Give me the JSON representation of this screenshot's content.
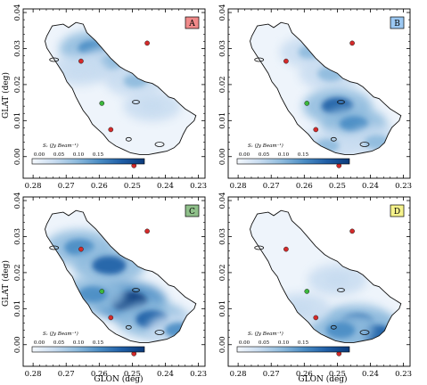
{
  "figure": {
    "x_axis_label": "GLON (deg)",
    "y_axis_label": "GLAT (deg)",
    "x_tick_labels": [
      "0.28",
      "0.27",
      "0.26",
      "0.25",
      "0.24",
      "0.23"
    ],
    "y_tick_labels": [
      "0.00",
      "0.01",
      "0.02",
      "0.03",
      "0.04"
    ],
    "colorbar": {
      "title": "S_ν  (Jy Beam⁻¹)",
      "title_display": "Sᵥ (Jy Beam⁻¹)",
      "tick_labels": [
        "0.00",
        "0.05",
        "0.10",
        "0.15"
      ],
      "colors": [
        "#f4f8fd",
        "#c8dcf0",
        "#8dbadd",
        "#4a8cc4",
        "#1f5ea6",
        "#0b3a7a"
      ]
    },
    "panels": [
      {
        "letter": "A",
        "badge_color": "#f08a8a"
      },
      {
        "letter": "B",
        "badge_color": "#9cc8f2"
      },
      {
        "letter": "C",
        "badge_color": "#8fc08a"
      },
      {
        "letter": "D",
        "badge_color": "#f6f38c"
      }
    ],
    "markers": {
      "red": "#d42a2a",
      "green": "#3cb83c"
    }
  },
  "chart_data": [
    {
      "type": "heatmap",
      "panel": "A",
      "xlabel": "",
      "ylabel": "GLAT (deg)",
      "xlim": [
        0.283,
        0.228
      ],
      "ylim": [
        -0.006,
        0.041
      ],
      "emission_regions": [
        {
          "glon": 0.262,
          "glat": 0.03,
          "level": 0.09
        },
        {
          "glon": 0.256,
          "glat": 0.026,
          "level": 0.07
        },
        {
          "glon": 0.249,
          "glat": 0.021,
          "level": 0.05
        },
        {
          "glon": 0.244,
          "glat": 0.014,
          "level": 0.03
        },
        {
          "glon": 0.266,
          "glat": 0.024,
          "level": 0.04
        }
      ]
    },
    {
      "type": "heatmap",
      "panel": "B",
      "xlabel": "",
      "ylabel": "",
      "xlim": [
        0.283,
        0.228
      ],
      "ylim": [
        -0.006,
        0.041
      ],
      "emission_regions": [
        {
          "glon": 0.258,
          "glat": 0.029,
          "level": 0.06
        },
        {
          "glon": 0.252,
          "glat": 0.023,
          "level": 0.07
        },
        {
          "glon": 0.25,
          "glat": 0.014,
          "level": 0.11
        },
        {
          "glon": 0.245,
          "glat": 0.009,
          "level": 0.09
        },
        {
          "glon": 0.238,
          "glat": 0.004,
          "level": 0.06
        },
        {
          "glon": 0.253,
          "glat": 0.003,
          "level": 0.05
        }
      ]
    },
    {
      "type": "heatmap",
      "panel": "C",
      "xlabel": "GLON (deg)",
      "ylabel": "GLAT (deg)",
      "xlim": [
        0.283,
        0.228
      ],
      "ylim": [
        -0.006,
        0.041
      ],
      "emission_regions": [
        {
          "glon": 0.266,
          "glat": 0.027,
          "level": 0.1
        },
        {
          "glon": 0.257,
          "glat": 0.022,
          "level": 0.13
        },
        {
          "glon": 0.251,
          "glat": 0.012,
          "level": 0.15
        },
        {
          "glon": 0.244,
          "glat": 0.007,
          "level": 0.12
        },
        {
          "glon": 0.236,
          "glat": 0.004,
          "level": 0.08
        },
        {
          "glon": 0.262,
          "glat": 0.014,
          "level": 0.09
        }
      ]
    },
    {
      "type": "heatmap",
      "panel": "D",
      "xlabel": "GLON (deg)",
      "ylabel": "",
      "xlim": [
        0.283,
        0.228
      ],
      "ylim": [
        -0.006,
        0.041
      ],
      "emission_regions": [
        {
          "glon": 0.244,
          "glat": 0.006,
          "level": 0.13
        },
        {
          "glon": 0.238,
          "glat": 0.003,
          "level": 0.11
        },
        {
          "glon": 0.249,
          "glat": 0.004,
          "level": 0.09
        },
        {
          "glon": 0.25,
          "glat": 0.018,
          "level": 0.04
        },
        {
          "glon": 0.261,
          "glat": 0.01,
          "level": 0.04
        }
      ]
    }
  ],
  "markers_data": {
    "red": [
      {
        "glon": 0.2655,
        "glat": 0.0265
      },
      {
        "glon": 0.2455,
        "glat": 0.0315
      },
      {
        "glon": 0.2565,
        "glat": 0.0075
      },
      {
        "glon": 0.2495,
        "glat": -0.0025
      }
    ],
    "green": [
      {
        "glon": 0.2592,
        "glat": 0.0148
      }
    ]
  }
}
